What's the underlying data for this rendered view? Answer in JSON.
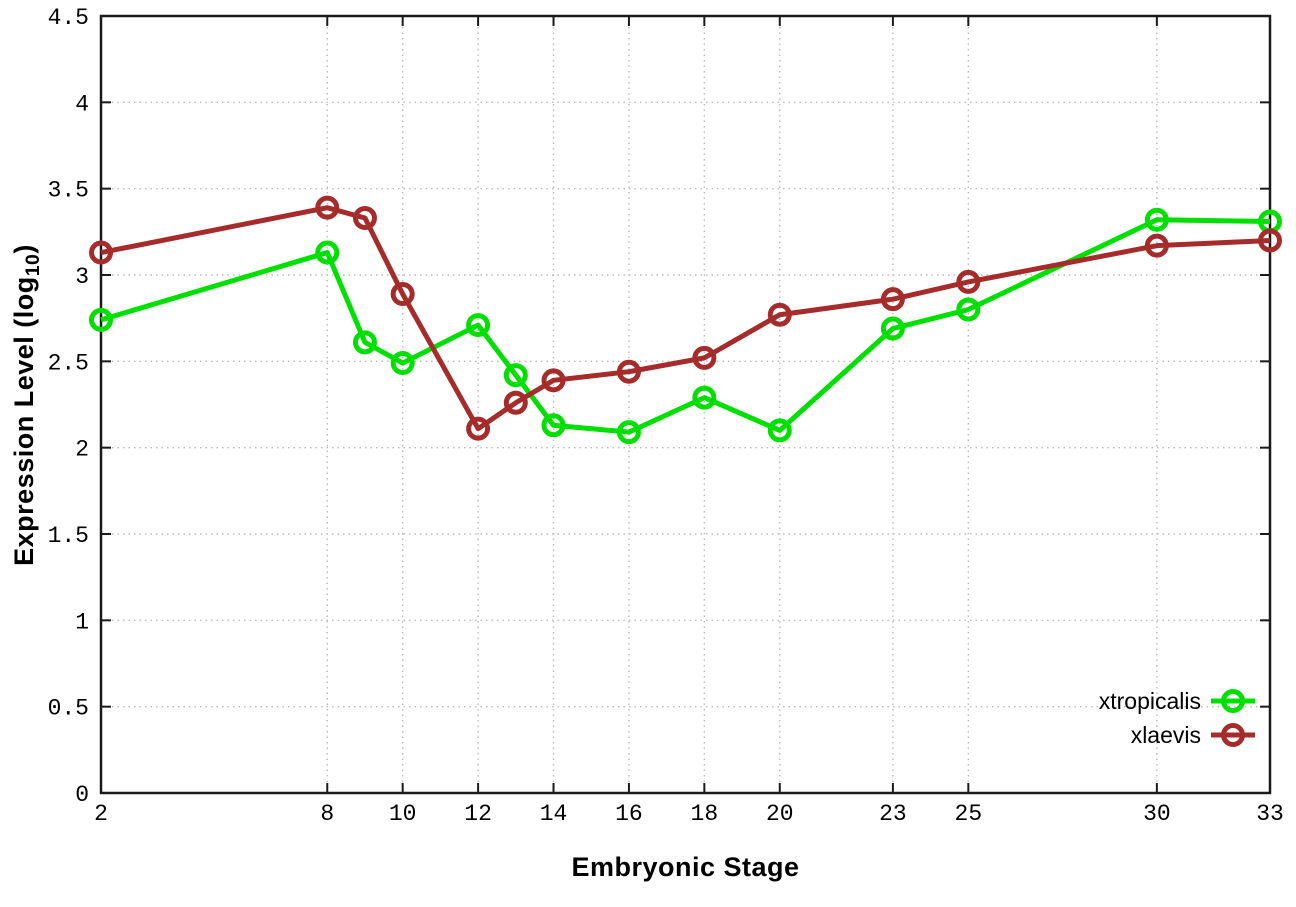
{
  "chart_data": {
    "type": "line",
    "title": "",
    "xlabel": "Embryonic Stage",
    "ylabel": "Expression Level (log10)",
    "ylabel_parts": {
      "pre": "Expression Level (log",
      "sub": "10",
      "post": ")"
    },
    "x": [
      2,
      8,
      9,
      10,
      12,
      13,
      14,
      16,
      18,
      20,
      23,
      25,
      30,
      33
    ],
    "series": [
      {
        "name": "xtropicalis",
        "color": "#00e000",
        "values": [
          2.74,
          3.13,
          2.61,
          2.49,
          2.71,
          2.42,
          2.13,
          2.09,
          2.29,
          2.1,
          2.69,
          2.8,
          3.32,
          3.31
        ]
      },
      {
        "name": "xlaevis",
        "color": "#a62c2c",
        "values": [
          3.13,
          3.39,
          3.33,
          2.89,
          2.11,
          2.26,
          2.39,
          2.44,
          2.52,
          2.77,
          2.86,
          2.96,
          3.17,
          3.2
        ]
      }
    ],
    "x_ticks": [
      2,
      8,
      10,
      12,
      14,
      16,
      18,
      20,
      23,
      25,
      30,
      33
    ],
    "x_tick_labels": [
      "2",
      "8",
      "10",
      "12",
      "14",
      "16",
      "18",
      "20",
      "23",
      "25",
      "30",
      "33"
    ],
    "y_ticks": [
      0,
      0.5,
      1,
      1.5,
      2,
      2.5,
      3,
      3.5,
      4,
      4.5
    ],
    "y_tick_labels": [
      "0",
      "0.5",
      "1",
      "1.5",
      "2",
      "2.5",
      "3",
      "3.5",
      "4",
      "4.5"
    ],
    "xlim": [
      2,
      33
    ],
    "ylim": [
      0,
      4.5
    ],
    "grid": true,
    "legend_position": "bottom-right",
    "axis_color": "#1a1a1a",
    "grid_color": "#bbbbbb",
    "marker": "open-circle"
  }
}
